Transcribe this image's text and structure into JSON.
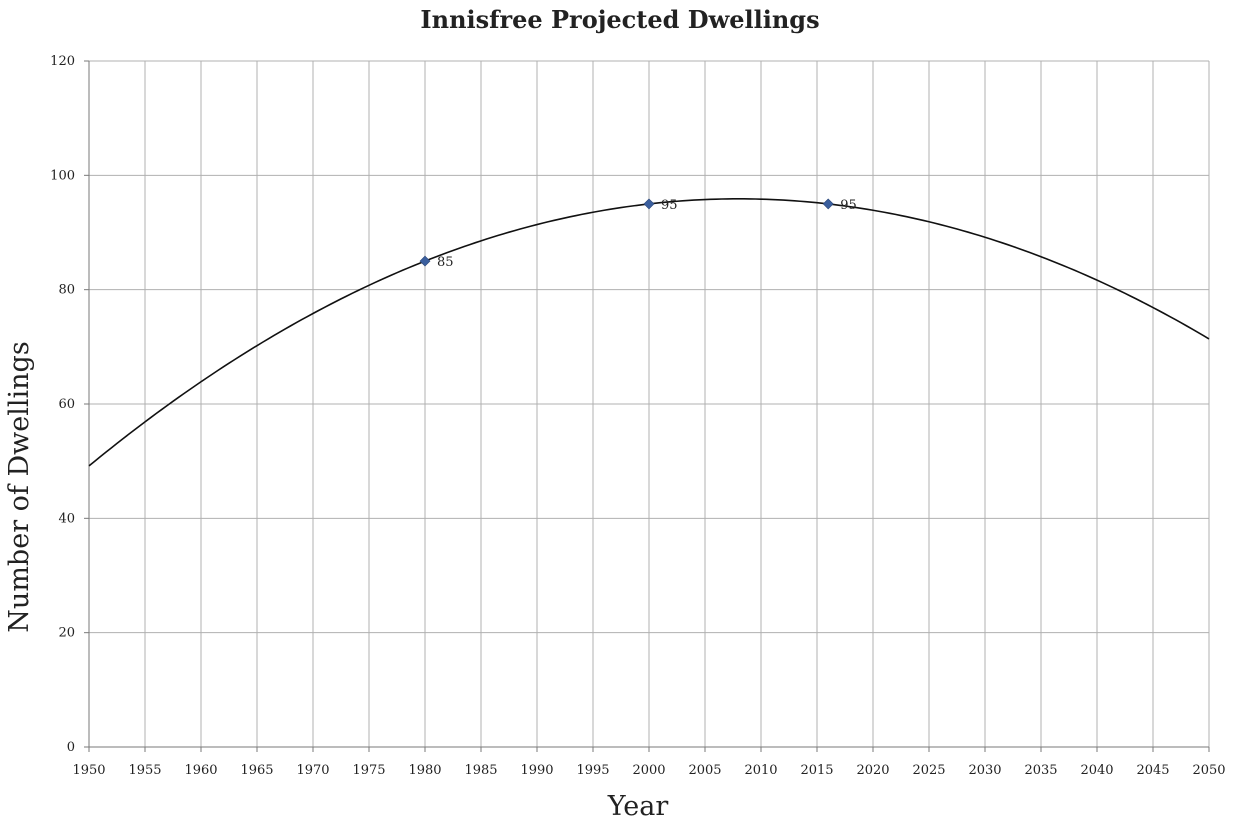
{
  "chart_data": {
    "type": "scatter",
    "title": "Innisfree Projected Dwellings",
    "xlabel": "Year",
    "ylabel": "Number of Dwellings",
    "xlim": [
      1950,
      2050
    ],
    "ylim": [
      0,
      120
    ],
    "x_ticks": [
      "1950",
      "1955",
      "1960",
      "1965",
      "1970",
      "1975",
      "1980",
      "1985",
      "1990",
      "1995",
      "2000",
      "2005",
      "2010",
      "2015",
      "2020",
      "2025",
      "2030",
      "2035",
      "2040",
      "2045",
      "2050"
    ],
    "y_ticks": [
      "0",
      "20",
      "40",
      "60",
      "80",
      "100",
      "120"
    ],
    "grid": true,
    "legend": "none",
    "series": [
      {
        "points": [
          {
            "x": 1980,
            "y": 85,
            "label": "85"
          },
          {
            "x": 2000,
            "y": 95,
            "label": "95"
          },
          {
            "x": 2016,
            "y": 95,
            "label": "95"
          }
        ],
        "marker": "diamond",
        "color": "#3b5f9e"
      }
    ],
    "trendline": {
      "type": "polynomial-2",
      "color": "#111111",
      "points": [
        {
          "x": 1950,
          "y": 49.2
        },
        {
          "x": 1960,
          "y": 64
        },
        {
          "x": 1970,
          "y": 75.8
        },
        {
          "x": 1980,
          "y": 85
        },
        {
          "x": 1990,
          "y": 91.4
        },
        {
          "x": 2000,
          "y": 95
        },
        {
          "x": 2008,
          "y": 95.9
        },
        {
          "x": 2016,
          "y": 95
        },
        {
          "x": 2020,
          "y": 94
        },
        {
          "x": 2030,
          "y": 89.2
        },
        {
          "x": 2040,
          "y": 81.6
        },
        {
          "x": 2050,
          "y": 71.4
        }
      ]
    }
  }
}
